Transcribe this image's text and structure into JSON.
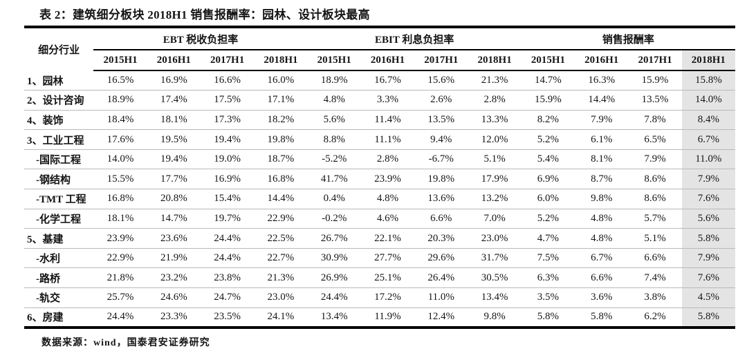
{
  "title": "表 2：建筑细分板块 2018H1 销售报酬率：园林、设计板块最高",
  "table": {
    "corner_header": "细分行业",
    "groups": [
      {
        "label": "EBT 税收负担率",
        "years": [
          "2015H1",
          "2016H1",
          "2017H1",
          "2018H1"
        ]
      },
      {
        "label": "EBIT 利息负担率",
        "years": [
          "2015H1",
          "2016H1",
          "2017H1",
          "2018H1"
        ]
      },
      {
        "label": "销售报酬率",
        "years": [
          "2015H1",
          "2016H1",
          "2017H1",
          "2018H1"
        ]
      }
    ],
    "highlight_column_index": 11,
    "highlight_color": "#e4e4e4",
    "rows": [
      {
        "label": "1、园林",
        "sub": false,
        "values": [
          "16.5%",
          "16.9%",
          "16.6%",
          "16.0%",
          "18.9%",
          "16.7%",
          "15.6%",
          "21.3%",
          "14.7%",
          "16.3%",
          "15.9%",
          "15.8%"
        ]
      },
      {
        "label": "2、设计咨询",
        "sub": false,
        "values": [
          "18.9%",
          "17.4%",
          "17.5%",
          "17.1%",
          "4.8%",
          "3.3%",
          "2.6%",
          "2.8%",
          "15.9%",
          "14.4%",
          "13.5%",
          "14.0%"
        ]
      },
      {
        "label": "4、装饰",
        "sub": false,
        "values": [
          "18.4%",
          "18.1%",
          "17.3%",
          "18.2%",
          "5.6%",
          "11.4%",
          "13.5%",
          "13.3%",
          "8.2%",
          "7.9%",
          "7.8%",
          "8.4%"
        ]
      },
      {
        "label": "3、工业工程",
        "sub": false,
        "values": [
          "17.6%",
          "19.5%",
          "19.4%",
          "19.8%",
          "8.8%",
          "11.1%",
          "9.4%",
          "12.0%",
          "5.2%",
          "6.1%",
          "6.5%",
          "6.7%"
        ]
      },
      {
        "label": "-国际工程",
        "sub": true,
        "values": [
          "14.0%",
          "19.4%",
          "19.0%",
          "18.7%",
          "-5.2%",
          "2.8%",
          "-6.7%",
          "5.1%",
          "5.4%",
          "8.1%",
          "7.9%",
          "11.0%"
        ]
      },
      {
        "label": "-钢结构",
        "sub": true,
        "values": [
          "15.5%",
          "17.7%",
          "16.9%",
          "16.8%",
          "41.7%",
          "23.9%",
          "19.8%",
          "17.9%",
          "6.9%",
          "8.7%",
          "8.6%",
          "7.9%"
        ]
      },
      {
        "label": "-TMT 工程",
        "sub": true,
        "values": [
          "16.8%",
          "20.8%",
          "15.4%",
          "14.4%",
          "0.4%",
          "4.8%",
          "13.6%",
          "13.2%",
          "6.0%",
          "9.8%",
          "8.6%",
          "7.6%"
        ]
      },
      {
        "label": "-化学工程",
        "sub": true,
        "values": [
          "18.1%",
          "14.7%",
          "19.7%",
          "22.9%",
          "-0.2%",
          "4.6%",
          "6.6%",
          "7.0%",
          "5.2%",
          "4.8%",
          "5.7%",
          "5.6%"
        ]
      },
      {
        "label": "5、基建",
        "sub": false,
        "values": [
          "23.9%",
          "23.6%",
          "24.4%",
          "22.5%",
          "26.7%",
          "22.1%",
          "20.3%",
          "23.0%",
          "4.7%",
          "4.8%",
          "5.1%",
          "5.8%"
        ]
      },
      {
        "label": "-水利",
        "sub": true,
        "values": [
          "22.9%",
          "21.9%",
          "24.4%",
          "22.7%",
          "30.9%",
          "27.7%",
          "29.6%",
          "31.7%",
          "7.5%",
          "6.7%",
          "6.6%",
          "7.9%"
        ]
      },
      {
        "label": "-路桥",
        "sub": true,
        "values": [
          "21.8%",
          "23.2%",
          "23.8%",
          "21.3%",
          "26.9%",
          "25.1%",
          "26.4%",
          "30.5%",
          "6.3%",
          "6.6%",
          "7.4%",
          "7.6%"
        ]
      },
      {
        "label": "-轨交",
        "sub": true,
        "values": [
          "25.7%",
          "24.6%",
          "24.7%",
          "23.0%",
          "24.4%",
          "17.2%",
          "11.0%",
          "13.4%",
          "3.5%",
          "3.6%",
          "3.8%",
          "4.5%"
        ]
      },
      {
        "label": "6、房建",
        "sub": false,
        "values": [
          "24.4%",
          "23.3%",
          "23.5%",
          "24.1%",
          "13.4%",
          "11.9%",
          "12.4%",
          "9.8%",
          "5.8%",
          "5.8%",
          "6.2%",
          "5.8%"
        ]
      }
    ]
  },
  "footer": {
    "source_line": "数据来源：wind，国泰君安证券研究"
  }
}
